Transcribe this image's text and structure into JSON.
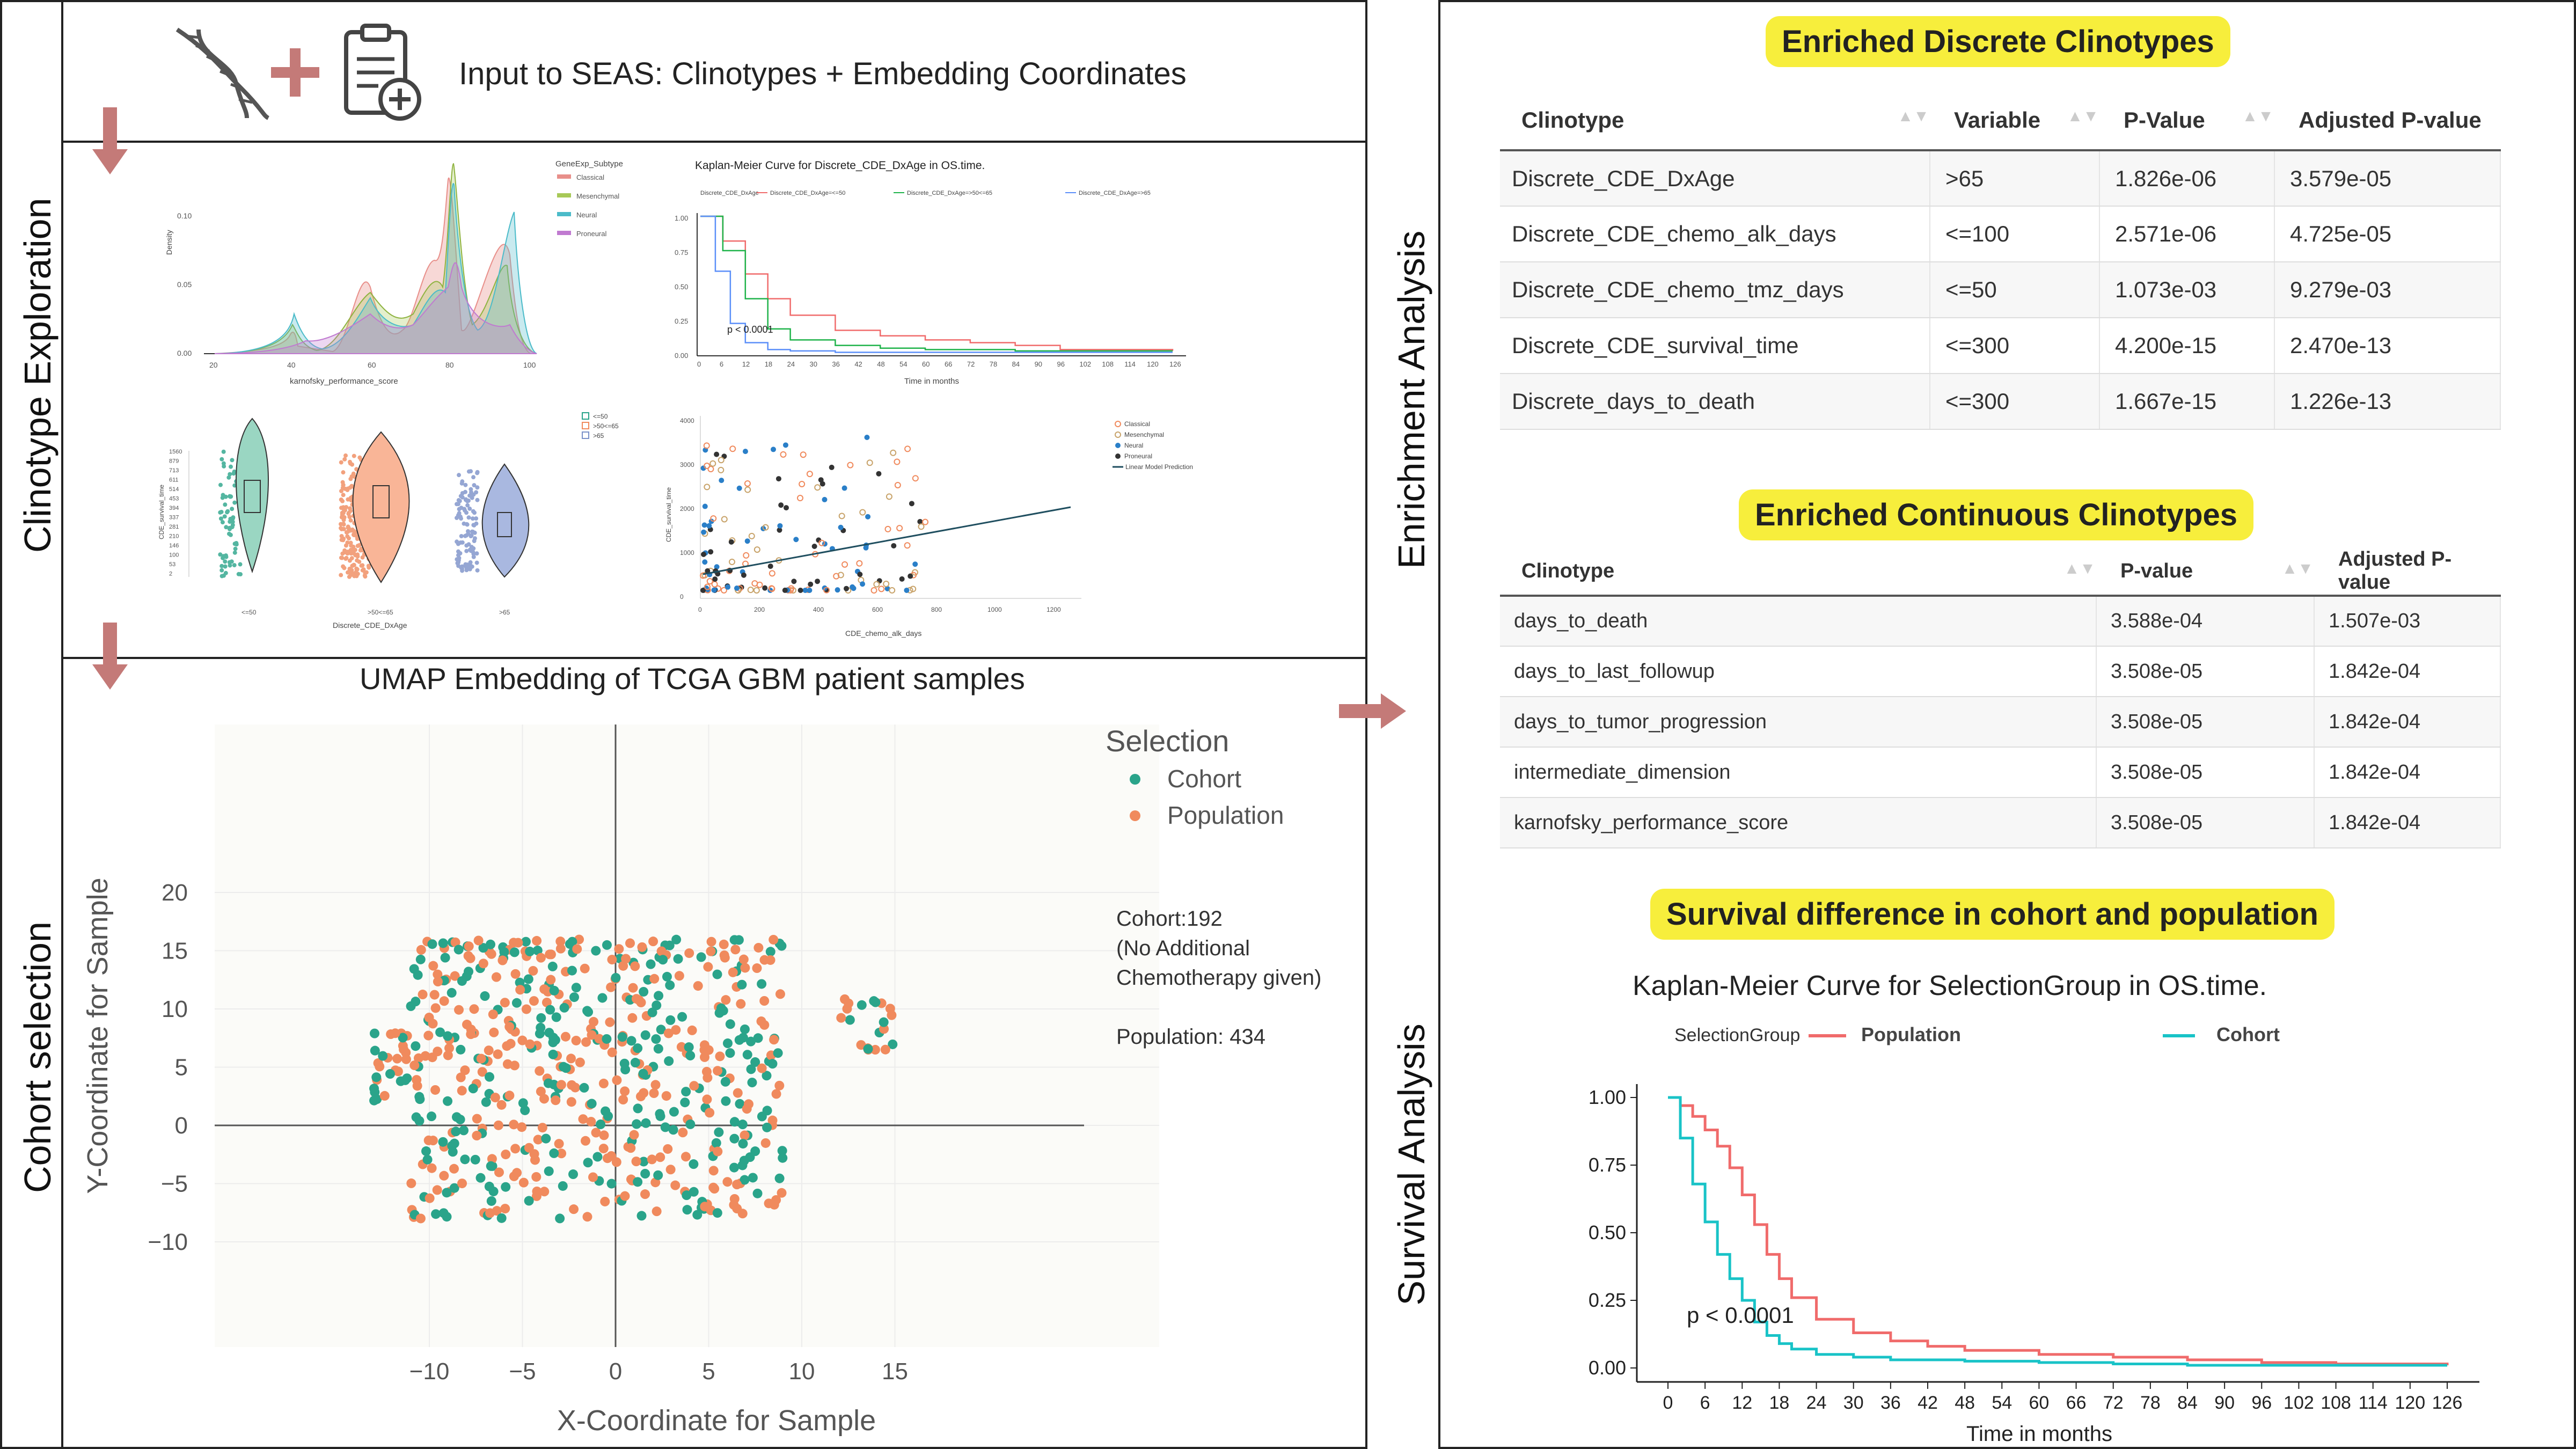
{
  "sections": {
    "clinotype_exploration": "Clinotype Exploration",
    "cohort_selection": "Cohort selection",
    "enrichment_analysis": "Enrichment Analysis",
    "survival_analysis": "Survival Analysis"
  },
  "input_title": "Input to SEAS: Clinotypes + Embedding Coordinates",
  "density_panel": {
    "legend_title": "GeneExp_Subtype",
    "legend": [
      "Classical",
      "Mesenchymal",
      "Neural",
      "Proneural"
    ],
    "ylabel": "Density",
    "yticks": [
      "0.10",
      "0.05",
      "0.00"
    ],
    "xticks": [
      "20",
      "40",
      "60",
      "80",
      "100"
    ],
    "xlabel": "karnofsky_performance_score"
  },
  "km_small": {
    "title": "Kaplan-Meier Curve for Discrete_CDE_DxAge in OS.time.",
    "legend_title": "Discrete_CDE_DxAge",
    "legend": [
      "Discrete_CDE_DxAge=<=50",
      "Discrete_CDE_DxAge=>50<=65",
      "Discrete_CDE_DxAge=>65"
    ],
    "yticks": [
      "1.00",
      "0.75",
      "0.50",
      "0.25",
      "0.00"
    ],
    "xticks": [
      "0",
      "6",
      "12",
      "18",
      "24",
      "30",
      "36",
      "42",
      "48",
      "54",
      "60",
      "66",
      "72",
      "78",
      "84",
      "90",
      "96",
      "102",
      "108",
      "114",
      "120",
      "126"
    ],
    "xlabel": "Time in months",
    "pvalue": "p < 0.0001"
  },
  "violin_panel": {
    "legend": [
      "<=50",
      ">50<=65",
      ">65"
    ],
    "ylabel": "CDE_survival_time",
    "yticks": [
      "1560",
      "879",
      "713",
      "611",
      "514",
      "453",
      "394",
      "337",
      "281",
      "210",
      "146",
      "100",
      "53",
      "2"
    ],
    "xticks": [
      "<=50",
      ">50<=65",
      ">65"
    ],
    "xlabel": "Discrete_CDE_DxAge"
  },
  "scatter_small": {
    "legend": [
      "Classical",
      "Mesenchymal",
      "Neural",
      "Proneural",
      "Linear Model Prediction"
    ],
    "ylabel": "CDE_survival_time",
    "yticks": [
      "4000",
      "3000",
      "2000",
      "1000",
      "0"
    ],
    "xticks": [
      "0",
      "200",
      "400",
      "600",
      "800",
      "1000",
      "1200"
    ],
    "xlabel": "CDE_chemo_alk_days"
  },
  "umap": {
    "title": "UMAP Embedding of TCGA GBM patient samples",
    "legend_title": "Selection",
    "legend": [
      "Cohort",
      "Population"
    ],
    "annotation": [
      "Cohort:192",
      "(No Additional",
      "Chemotherapy given)",
      "",
      "Population: 434"
    ],
    "xlabel": "X-Coordinate for Sample",
    "ylabel": "Y-Coordinate for Sample",
    "xticks": [
      "−10",
      "−5",
      "0",
      "5",
      "10",
      "15"
    ],
    "yticks": [
      "20",
      "15",
      "10",
      "5",
      "0",
      "−5",
      "−10"
    ]
  },
  "discrete_table": {
    "title": "Enriched Discrete Clinotypes",
    "headers": [
      "Clinotype",
      "Variable",
      "P-Value",
      "Adjusted P-value"
    ],
    "rows": [
      [
        "Discrete_CDE_DxAge",
        ">65",
        "1.826e-06",
        "3.579e-05"
      ],
      [
        "Discrete_CDE_chemo_alk_days",
        "<=100",
        "2.571e-06",
        "4.725e-05"
      ],
      [
        "Discrete_CDE_chemo_tmz_days",
        "<=50",
        "1.073e-03",
        "9.279e-03"
      ],
      [
        "Discrete_CDE_survival_time",
        "<=300",
        "4.200e-15",
        "2.470e-13"
      ],
      [
        "Discrete_days_to_death",
        "<=300",
        "1.667e-15",
        "1.226e-13"
      ]
    ]
  },
  "continuous_table": {
    "title": "Enriched Continuous Clinotypes",
    "headers": [
      "Clinotype",
      "P-value",
      "Adjusted P-value"
    ],
    "rows": [
      [
        "days_to_death",
        "3.588e-04",
        "1.507e-03"
      ],
      [
        "days_to_last_followup",
        "3.508e-05",
        "1.842e-04"
      ],
      [
        "days_to_tumor_progression",
        "3.508e-05",
        "1.842e-04"
      ],
      [
        "intermediate_dimension",
        "3.508e-05",
        "1.842e-04"
      ],
      [
        "karnofsky_performance_score",
        "3.508e-05",
        "1.842e-04"
      ]
    ]
  },
  "survival": {
    "title": "Survival difference in cohort and population",
    "km_title": "Kaplan-Meier Curve for SelectionGroup in OS.time.",
    "legend_title": "SelectionGroup",
    "legend": [
      "Population",
      "Cohort"
    ],
    "yticks": [
      "1.00",
      "0.75",
      "0.50",
      "0.25",
      "0.00"
    ],
    "xticks": [
      "0",
      "6",
      "12",
      "18",
      "24",
      "30",
      "36",
      "42",
      "48",
      "54",
      "60",
      "66",
      "72",
      "78",
      "84",
      "90",
      "96",
      "102",
      "108",
      "114",
      "120",
      "126"
    ],
    "xlabel": "Time in months",
    "pvalue": "p < 0.0001"
  },
  "colors": {
    "cohort": "#2aa48a",
    "population": "#f08a5d",
    "km_population": "#f06b6b",
    "km_cohort": "#19c3c7",
    "arrow": "#c47a78",
    "highlight": "#f7ee3c"
  },
  "chart_data": [
    {
      "type": "line",
      "title": "Kaplan-Meier Curve for SelectionGroup in OS.time.",
      "xlabel": "Time in months",
      "ylabel": "",
      "xlim": [
        0,
        129
      ],
      "ylim": [
        0,
        1
      ],
      "series": [
        {
          "name": "Population",
          "x": [
            0,
            2,
            4,
            6,
            8,
            10,
            12,
            14,
            16,
            18,
            20,
            24,
            30,
            36,
            42,
            48,
            60,
            72,
            84,
            96,
            108,
            126
          ],
          "values": [
            1.0,
            0.97,
            0.93,
            0.88,
            0.82,
            0.74,
            0.64,
            0.53,
            0.42,
            0.33,
            0.26,
            0.18,
            0.13,
            0.1,
            0.08,
            0.065,
            0.05,
            0.04,
            0.03,
            0.02,
            0.015,
            0.01
          ]
        },
        {
          "name": "Cohort",
          "x": [
            0,
            2,
            4,
            6,
            8,
            10,
            12,
            14,
            16,
            18,
            20,
            24,
            30,
            36,
            48,
            60,
            72,
            84,
            96,
            108,
            126
          ],
          "values": [
            1.0,
            0.85,
            0.68,
            0.54,
            0.42,
            0.33,
            0.25,
            0.17,
            0.12,
            0.09,
            0.07,
            0.05,
            0.04,
            0.03,
            0.025,
            0.02,
            0.015,
            0.01,
            0.01,
            0.01,
            0.01
          ]
        }
      ]
    },
    {
      "type": "line",
      "title": "Kaplan-Meier Curve for Discrete_CDE_DxAge in OS.time.",
      "xlabel": "Time in months",
      "xlim": [
        0,
        129
      ],
      "ylim": [
        0,
        1
      ],
      "series": [
        {
          "name": "Discrete_CDE_DxAge=<=50",
          "x": [
            0,
            6,
            12,
            18,
            24,
            36,
            48,
            60,
            72,
            84,
            96,
            126
          ],
          "values": [
            1.0,
            0.82,
            0.58,
            0.4,
            0.28,
            0.17,
            0.13,
            0.1,
            0.08,
            0.06,
            0.03,
            0.02
          ]
        },
        {
          "name": "Discrete_CDE_DxAge=>50<=65",
          "x": [
            0,
            6,
            12,
            18,
            24,
            36,
            48,
            60,
            84,
            126
          ],
          "values": [
            1.0,
            0.75,
            0.4,
            0.18,
            0.1,
            0.06,
            0.04,
            0.03,
            0.02,
            0.02
          ]
        },
        {
          "name": "Discrete_CDE_DxAge=>65",
          "x": [
            0,
            4,
            8,
            12,
            18,
            24,
            36,
            60,
            126
          ],
          "values": [
            1.0,
            0.6,
            0.22,
            0.08,
            0.03,
            0.02,
            0.01,
            0.01,
            0.01
          ]
        }
      ]
    }
  ]
}
